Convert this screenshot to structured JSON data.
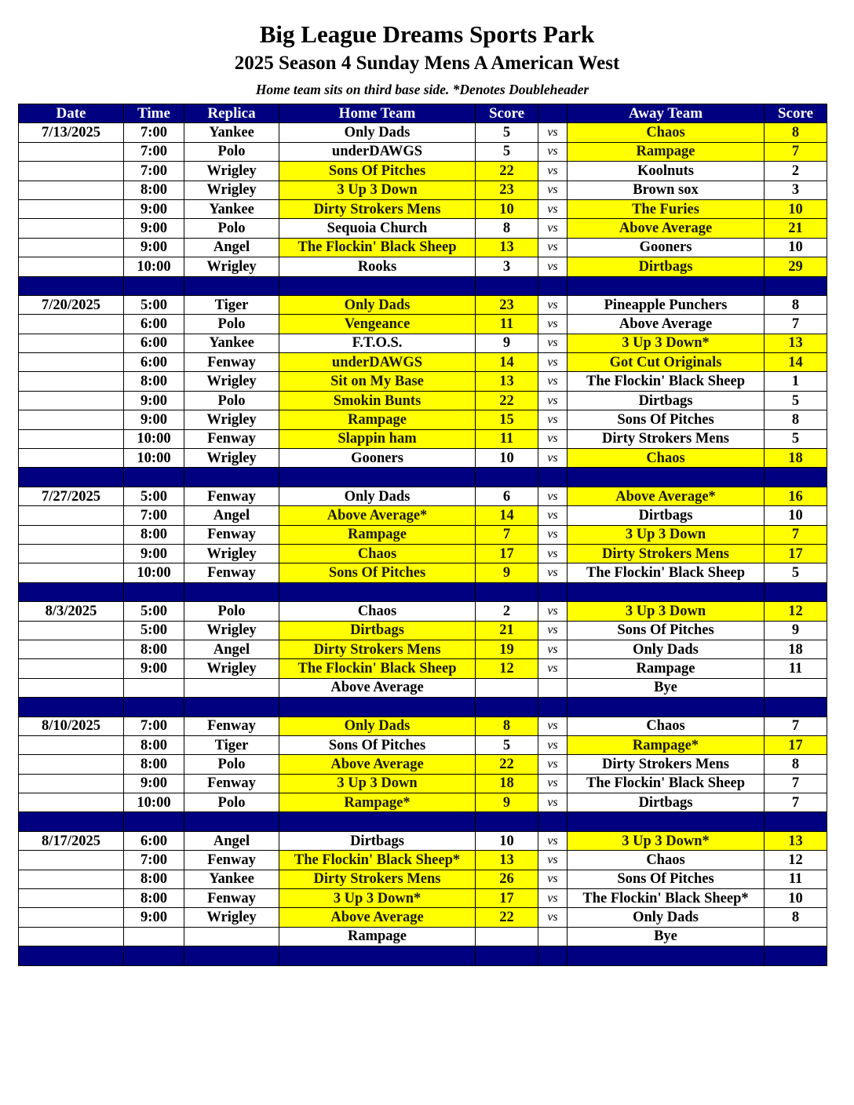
{
  "title": "Big League Dreams Sports Park",
  "subtitle": "2025 Season 4 Sunday Mens A American West",
  "note": "Home team sits on third base side.  *Denotes Doubleheader",
  "colors": {
    "header": "#000080",
    "winner_highlight": "#ffff00"
  },
  "columns": [
    "Date",
    "Time",
    "Replica",
    "Home Team",
    "Score",
    "",
    "Away Team",
    "Score"
  ],
  "vs_label": "vs",
  "weeks": [
    {
      "date": "7/13/2025",
      "games": [
        [
          "7:00",
          "Yankee",
          "Only Dads",
          "5",
          "Chaos",
          "8",
          0,
          1
        ],
        [
          "7:00",
          "Polo",
          "underDAWGS",
          "5",
          "Rampage",
          "7",
          0,
          1
        ],
        [
          "7:00",
          "Wrigley",
          "Sons Of Pitches",
          "22",
          "Koolnuts",
          "2",
          1,
          0
        ],
        [
          "8:00",
          "Wrigley",
          "3 Up 3 Down",
          "23",
          "Brown sox",
          "3",
          1,
          0
        ],
        [
          "9:00",
          "Yankee",
          "Dirty Strokers Mens",
          "10",
          "The Furies",
          "10",
          1,
          1
        ],
        [
          "9:00",
          "Polo",
          "Sequoia Church",
          "8",
          "Above Average",
          "21",
          0,
          1
        ],
        [
          "9:00",
          "Angel",
          "The Flockin' Black Sheep",
          "13",
          "Gooners",
          "10",
          1,
          0
        ],
        [
          "10:00",
          "Wrigley",
          "Rooks",
          "3",
          "Dirtbags",
          "29",
          0,
          1
        ]
      ]
    },
    {
      "date": "7/20/2025",
      "games": [
        [
          "5:00",
          "Tiger",
          "Only Dads",
          "23",
          "Pineapple Punchers",
          "8",
          1,
          0
        ],
        [
          "6:00",
          "Polo",
          "Vengeance",
          "11",
          "Above Average",
          "7",
          1,
          0
        ],
        [
          "6:00",
          "Yankee",
          "F.T.O.S.",
          "9",
          "3 Up 3 Down*",
          "13",
          0,
          1
        ],
        [
          "6:00",
          "Fenway",
          "underDAWGS",
          "14",
          "Got Cut Originals",
          "14",
          1,
          1
        ],
        [
          "8:00",
          "Wrigley",
          "Sit on My Base",
          "13",
          "The Flockin' Black Sheep",
          "1",
          1,
          0
        ],
        [
          "9:00",
          "Polo",
          "Smokin Bunts",
          "22",
          "Dirtbags",
          "5",
          1,
          0
        ],
        [
          "9:00",
          "Wrigley",
          "Rampage",
          "15",
          "Sons Of Pitches",
          "8",
          1,
          0
        ],
        [
          "10:00",
          "Fenway",
          "Slappin ham",
          "11",
          "Dirty Strokers Mens",
          "5",
          1,
          0
        ],
        [
          "10:00",
          "Wrigley",
          "Gooners",
          "10",
          "Chaos",
          "18",
          0,
          1
        ]
      ]
    },
    {
      "date": "7/27/2025",
      "games": [
        [
          "5:00",
          "Fenway",
          "Only Dads",
          "6",
          "Above Average*",
          "16",
          0,
          1
        ],
        [
          "7:00",
          "Angel",
          "Above Average*",
          "14",
          "Dirtbags",
          "10",
          1,
          0
        ],
        [
          "8:00",
          "Fenway",
          "Rampage",
          "7",
          "3 Up 3 Down",
          "7",
          1,
          1
        ],
        [
          "9:00",
          "Wrigley",
          "Chaos",
          "17",
          "Dirty Strokers Mens",
          "17",
          1,
          1
        ],
        [
          "10:00",
          "Fenway",
          "Sons Of Pitches",
          "9",
          "The Flockin' Black Sheep",
          "5",
          1,
          0
        ]
      ]
    },
    {
      "date": "8/3/2025",
      "games": [
        [
          "5:00",
          "Polo",
          "Chaos",
          "2",
          "3 Up 3 Down",
          "12",
          0,
          1
        ],
        [
          "5:00",
          "Wrigley",
          "Dirtbags",
          "21",
          "Sons Of Pitches",
          "9",
          1,
          0
        ],
        [
          "8:00",
          "Angel",
          "Dirty Strokers Mens",
          "19",
          "Only Dads",
          "18",
          1,
          0
        ],
        [
          "9:00",
          "Wrigley",
          "The Flockin' Black Sheep",
          "12",
          "Rampage",
          "11",
          1,
          0
        ],
        [
          "",
          "",
          "Above Average",
          "",
          "Bye",
          "",
          0,
          0
        ]
      ]
    },
    {
      "date": "8/10/2025",
      "games": [
        [
          "7:00",
          "Fenway",
          "Only Dads",
          "8",
          "Chaos",
          "7",
          1,
          0
        ],
        [
          "8:00",
          "Tiger",
          "Sons Of Pitches",
          "5",
          "Rampage*",
          "17",
          0,
          1
        ],
        [
          "8:00",
          "Polo",
          "Above Average",
          "22",
          "Dirty Strokers Mens",
          "8",
          1,
          0
        ],
        [
          "9:00",
          "Fenway",
          "3 Up 3 Down",
          "18",
          "The Flockin' Black Sheep",
          "7",
          1,
          0
        ],
        [
          "10:00",
          "Polo",
          "Rampage*",
          "9",
          "Dirtbags",
          "7",
          1,
          0
        ]
      ]
    },
    {
      "date": "8/17/2025",
      "games": [
        [
          "6:00",
          "Angel",
          "Dirtbags",
          "10",
          "3 Up 3 Down*",
          "13",
          0,
          1
        ],
        [
          "7:00",
          "Fenway",
          "The Flockin' Black Sheep*",
          "13",
          "Chaos",
          "12",
          1,
          0
        ],
        [
          "8:00",
          "Yankee",
          "Dirty Strokers Mens",
          "26",
          "Sons Of Pitches",
          "11",
          1,
          0
        ],
        [
          "8:00",
          "Fenway",
          "3 Up 3 Down*",
          "17",
          "The Flockin' Black Sheep*",
          "10",
          1,
          0
        ],
        [
          "9:00",
          "Wrigley",
          "Above Average",
          "22",
          "Only Dads",
          "8",
          1,
          0
        ],
        [
          "",
          "",
          "Rampage",
          "",
          "Bye",
          "",
          0,
          0
        ]
      ]
    }
  ]
}
